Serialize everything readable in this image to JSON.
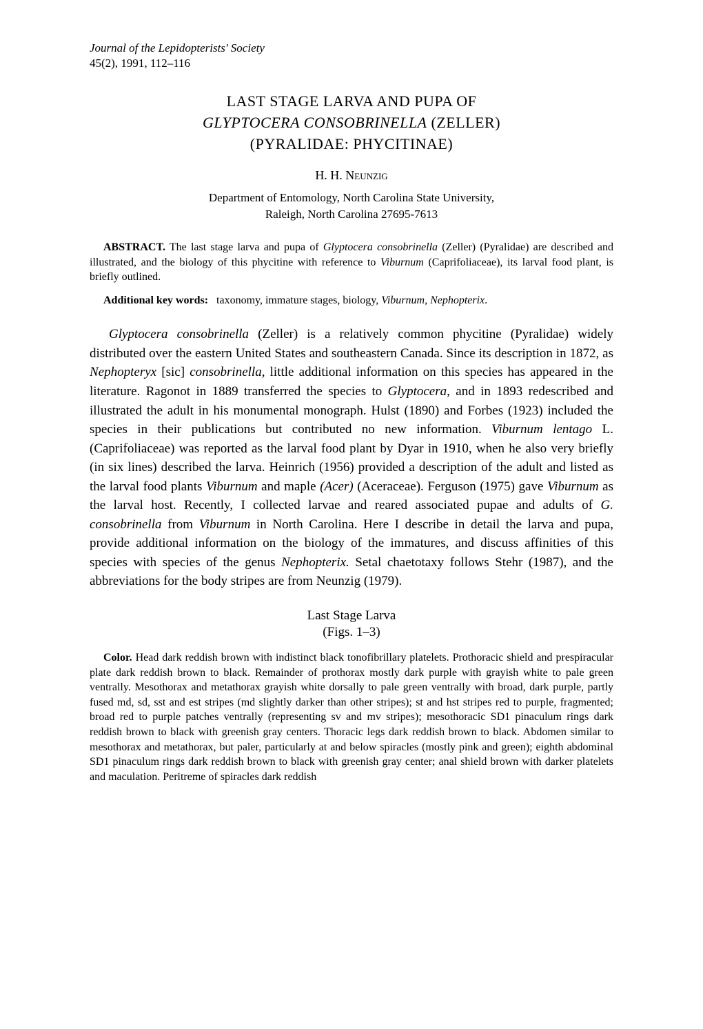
{
  "journal": {
    "name": "Journal of the Lepidopterists' Society",
    "issue": "45(2), 1991, 112–116"
  },
  "title": {
    "line1": "LAST STAGE LARVA AND PUPA OF",
    "species": "GLYPTOCERA CONSOBRINELLA",
    "authority": " (ZELLER)",
    "line3": "(PYRALIDAE: PHYCITINAE)"
  },
  "author": "H. H. Neunzig",
  "affiliation": {
    "line1": "Department of Entomology, North Carolina State University,",
    "line2": "Raleigh, North Carolina 27695-7613"
  },
  "abstract": {
    "label": "ABSTRACT.",
    "text_before_species": "The last stage larva and pupa of ",
    "species1": "Glyptocera consobrinella",
    "text_mid": " (Zeller) (Pyralidae) are described and illustrated, and the biology of this phycitine with reference to ",
    "species2": "Viburnum",
    "text_end": " (Caprifoliaceae), its larval food plant, is briefly outlined."
  },
  "keywords": {
    "label": "Additional key words:",
    "text_before": "taxonomy, immature stages, biology, ",
    "italic1": "Viburnum, Nephopterix",
    "text_end": "."
  },
  "body": {
    "p1_start": "Glyptocera consobrinella",
    "p1_after_species": " (Zeller) is a relatively common phycitine (Pyralidae) widely distributed over the eastern United States and southeastern Canada. Since its description in 1872, as ",
    "p1_nephopteryx": "Nephopteryx",
    "p1_sic": " [sic] ",
    "p1_consobrinella": "consobrinella,",
    "p1_mid1": " little additional information on this species has appeared in the literature. Ragonot in 1889 transferred the species to ",
    "p1_glyptocera": "Glyptocera,",
    "p1_mid2": " and in 1893 redescribed and illustrated the adult in his monumental monograph. Hulst (1890) and Forbes (1923) included the species in their publications but contributed no new information. ",
    "p1_viburnum_lentago": "Viburnum lentago",
    "p1_mid3": " L. (Caprifoliaceae) was reported as the larval food plant by Dyar in 1910, when he also very briefly (in six lines) described the larva. Heinrich (1956) provided a description of the adult and listed as the larval food plants ",
    "p1_viburnum": "Viburnum",
    "p1_and_maple": " and maple ",
    "p1_acer": "(Acer)",
    "p1_aceraceae": " (Aceraceae). Ferguson (1975) gave ",
    "p1_viburnum2": "Viburnum",
    "p1_mid4": " as the larval host. Recently, I collected larvae and reared associated pupae and adults of ",
    "p1_g_consobrinella": "G. consobrinella",
    "p1_from": " from ",
    "p1_viburnum3": "Viburnum",
    "p1_mid5": " in North Carolina. Here I describe in detail the larva and pupa, provide additional information on the biology of the immatures, and discuss affinities of this species with species of the genus ",
    "p1_nephopterix": "Nephopterix.",
    "p1_end": " Setal chaetotaxy follows Stehr (1987), and the abbreviations for the body stripes are from Neunzig (1979)."
  },
  "section": {
    "heading": "Last Stage Larva",
    "figs": "(Figs. 1–3)"
  },
  "description": {
    "color_label": "Color.",
    "color_text": " Head dark reddish brown with indistinct black tonofibrillary platelets. Prothoracic shield and prespiracular plate dark reddish brown to black. Remainder of prothorax mostly dark purple with grayish white to pale green ventrally. Mesothorax and metathorax grayish white dorsally to pale green ventrally with broad, dark purple, partly fused md, sd, sst and est stripes (md slightly darker than other stripes); st and hst stripes red to purple, fragmented; broad red to purple patches ventrally (representing sv and mv stripes); mesothoracic SD1 pinaculum rings dark reddish brown to black with greenish gray centers. Thoracic legs dark reddish brown to black. Abdomen similar to mesothorax and metathorax, but paler, particularly at and below spiracles (mostly pink and green); eighth abdominal SD1 pinaculum rings dark reddish brown to black with greenish gray center; anal shield brown with darker platelets and maculation. Peritreme of spiracles dark reddish"
  }
}
